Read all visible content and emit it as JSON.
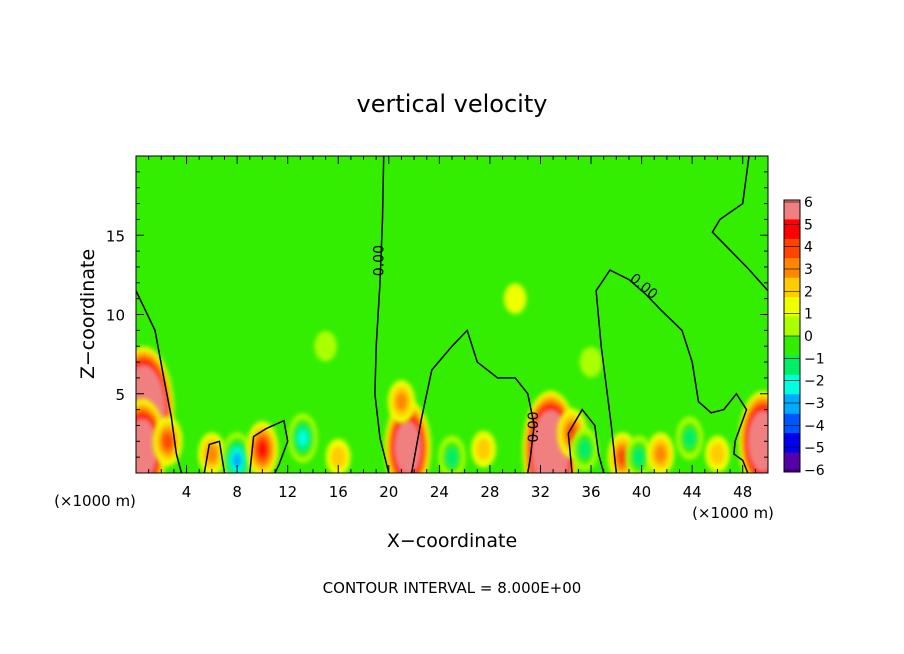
{
  "chart_data": {
    "type": "heatmap",
    "title": "vertical velocity",
    "xlabel": "X−coordinate",
    "ylabel": "Z−coordinate",
    "x_unit_left": "(×1000 m)",
    "x_unit_right": "(×1000 m)",
    "xlim": [
      0,
      50
    ],
    "ylim": [
      0,
      20
    ],
    "x_ticks": [
      4,
      8,
      12,
      16,
      20,
      24,
      28,
      32,
      36,
      40,
      44,
      48
    ],
    "y_ticks": [
      5,
      10,
      15
    ],
    "contour_label": "0.00",
    "contour_interval_text": "CONTOUR INTERVAL = 8.000E+00",
    "colorbar": {
      "levels": [
        6,
        5,
        4,
        3,
        2,
        1,
        0,
        -1,
        -2,
        -3,
        -4,
        -5,
        -6
      ],
      "labels": [
        "6",
        "5",
        "4",
        "3",
        "2",
        "1",
        "0",
        "−1",
        "−2",
        "−3",
        "−4",
        "−5",
        "−6"
      ],
      "colors": [
        "#f08080",
        "#ff0000",
        "#ff4400",
        "#ff8800",
        "#ffcc00",
        "#eeff00",
        "#aaff00",
        "#33ee00",
        "#00ee66",
        "#00ffdd",
        "#00aaff",
        "#0055ff",
        "#0000ee",
        "#5500aa"
      ]
    },
    "features": [
      {
        "x": 0.6,
        "z": 3.8,
        "w": 17
      },
      {
        "x": 0.5,
        "z": 1.5,
        "w": 12
      },
      {
        "x": 2.5,
        "z": 2.0,
        "w": 4
      },
      {
        "x": 6.0,
        "z": 1.2,
        "w": 3
      },
      {
        "x": 8.0,
        "z": 0.8,
        "w": -5
      },
      {
        "x": 10.0,
        "z": 1.5,
        "w": 5
      },
      {
        "x": 13.2,
        "z": 2.2,
        "w": -4
      },
      {
        "x": 16.0,
        "z": 1.0,
        "w": 2
      },
      {
        "x": 21.5,
        "z": 1.6,
        "w": 11
      },
      {
        "x": 21.0,
        "z": 4.5,
        "w": 3
      },
      {
        "x": 25.0,
        "z": 1.0,
        "w": -3
      },
      {
        "x": 27.5,
        "z": 1.5,
        "w": 2
      },
      {
        "x": 32.8,
        "z": 1.4,
        "w": 15
      },
      {
        "x": 34.5,
        "z": 2.5,
        "w": 4
      },
      {
        "x": 35.5,
        "z": 1.5,
        "w": -3
      },
      {
        "x": 38.5,
        "z": 1.0,
        "w": 4
      },
      {
        "x": 39.8,
        "z": 1.0,
        "w": -3
      },
      {
        "x": 41.5,
        "z": 1.2,
        "w": 3
      },
      {
        "x": 43.8,
        "z": 2.2,
        "w": -3
      },
      {
        "x": 46.0,
        "z": 1.2,
        "w": 2
      },
      {
        "x": 49.6,
        "z": 2.0,
        "w": 12
      },
      {
        "x": 15.0,
        "z": 8.0,
        "w": -1
      },
      {
        "x": 30.0,
        "z": 11.0,
        "w": 1
      },
      {
        "x": 36.0,
        "z": 7.0,
        "w": -1
      }
    ],
    "contours": [
      [
        [
          0,
          11.5
        ],
        [
          1.5,
          9
        ],
        [
          2.2,
          6
        ],
        [
          2.8,
          3.5
        ],
        [
          3.2,
          1.2
        ],
        [
          3.6,
          0
        ]
      ],
      [
        [
          5.4,
          0
        ],
        [
          5.8,
          1.8
        ],
        [
          6.6,
          2.0
        ],
        [
          7.0,
          0
        ]
      ],
      [
        [
          9.0,
          0
        ],
        [
          9.3,
          2.3
        ],
        [
          10.3,
          2.8
        ],
        [
          11.7,
          3.3
        ],
        [
          12.0,
          2.0
        ],
        [
          11.3,
          0.5
        ],
        [
          11.0,
          0
        ]
      ],
      [
        [
          19.6,
          20
        ],
        [
          19.5,
          16
        ],
        [
          19.3,
          12
        ],
        [
          19.0,
          8
        ],
        [
          18.9,
          5
        ],
        [
          19.3,
          2.2
        ],
        [
          20.0,
          0
        ]
      ],
      [
        [
          21.8,
          0
        ],
        [
          22.6,
          3.5
        ],
        [
          23.4,
          6.5
        ],
        [
          25.0,
          8.0
        ],
        [
          26.2,
          9.0
        ],
        [
          27.0,
          7.0
        ],
        [
          28.6,
          6.0
        ],
        [
          30.0,
          6.0
        ],
        [
          31.0,
          5.0
        ],
        [
          31.5,
          3.0
        ],
        [
          31.2,
          1.0
        ],
        [
          31.0,
          0
        ]
      ],
      [
        [
          34.5,
          0
        ],
        [
          34.2,
          2.5
        ],
        [
          35.3,
          4.0
        ],
        [
          36.3,
          3.0
        ],
        [
          36.6,
          1.2
        ],
        [
          37.0,
          0
        ]
      ],
      [
        [
          38.0,
          0
        ],
        [
          37.6,
          3.0
        ],
        [
          36.8,
          8.0
        ],
        [
          36.4,
          11.5
        ],
        [
          37.5,
          12.8
        ],
        [
          39.0,
          12.2
        ],
        [
          40.3,
          11.3
        ],
        [
          41.5,
          10.3
        ],
        [
          43.2,
          9.0
        ],
        [
          44.0,
          7.0
        ],
        [
          44.5,
          4.5
        ],
        [
          45.5,
          3.8
        ],
        [
          46.5,
          4.0
        ],
        [
          47.5,
          5.0
        ],
        [
          48.3,
          4.0
        ],
        [
          47.4,
          2.0
        ],
        [
          47.3,
          1.2
        ],
        [
          48.0,
          0.8
        ],
        [
          48.4,
          0
        ]
      ],
      [
        [
          48.5,
          20
        ],
        [
          48.0,
          17
        ],
        [
          46.2,
          16.0
        ],
        [
          45.6,
          15.2
        ],
        [
          48.3,
          13.0
        ],
        [
          50,
          11.5
        ]
      ]
    ]
  }
}
